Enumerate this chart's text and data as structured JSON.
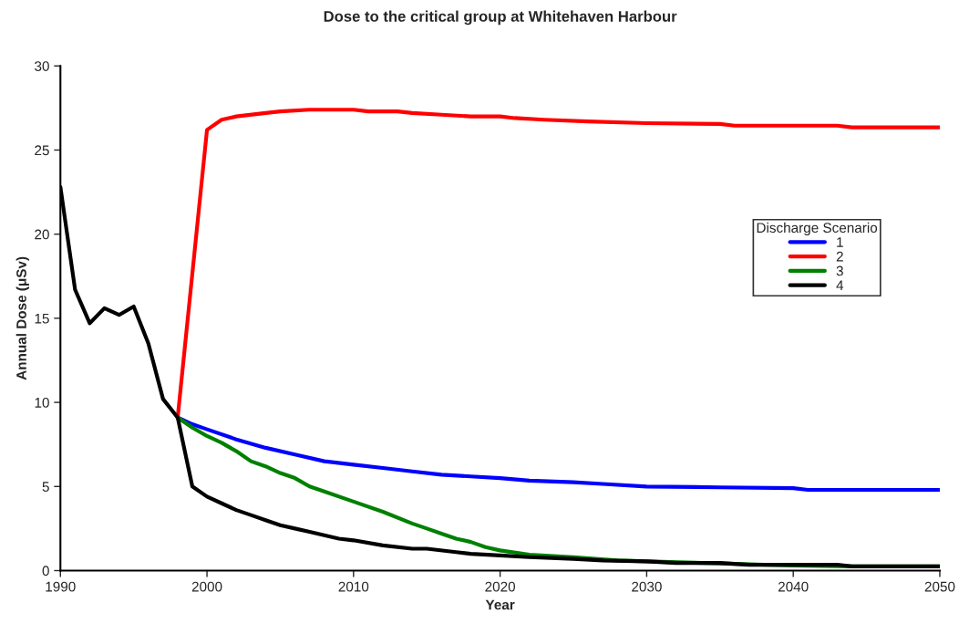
{
  "chart_data": {
    "type": "line",
    "title": "Dose to the critical group at Whitehaven Harbour",
    "xlabel": "Year",
    "ylabel": "Annual Dose (μSv)",
    "legend_title": "Discharge Scenario",
    "legend": "right",
    "grid": false,
    "marker": "none",
    "line_style": "solid",
    "xlim": [
      1990,
      2050
    ],
    "xticks": [
      1990,
      2000,
      2010,
      2020,
      2030,
      2040,
      2050
    ],
    "ylim": [
      0,
      30
    ],
    "yticks": [
      0,
      5,
      10,
      15,
      20,
      25,
      30
    ],
    "series": [
      {
        "name": "1",
        "color": "#0000ff",
        "x": [
          1998,
          1999,
          2000,
          2002,
          2004,
          2006,
          2008,
          2010,
          2012,
          2014,
          2016,
          2018,
          2020,
          2022,
          2025,
          2027,
          2030,
          2035,
          2040,
          2041,
          2050
        ],
        "values": [
          9.1,
          8.7,
          8.4,
          7.8,
          7.3,
          6.9,
          6.5,
          6.3,
          6.1,
          5.9,
          5.7,
          5.6,
          5.5,
          5.35,
          5.25,
          5.15,
          5.0,
          4.95,
          4.9,
          4.8,
          4.8
        ]
      },
      {
        "name": "2",
        "color": "#ff0000",
        "x": [
          1998,
          2000,
          2001,
          2002,
          2004,
          2005,
          2007,
          2010,
          2011,
          2013,
          2014,
          2016,
          2018,
          2020,
          2021,
          2023,
          2026,
          2030,
          2035,
          2036,
          2043,
          2044,
          2050
        ],
        "values": [
          9.1,
          26.2,
          26.8,
          27.0,
          27.2,
          27.3,
          27.4,
          27.4,
          27.3,
          27.3,
          27.2,
          27.1,
          27.0,
          27.0,
          26.9,
          26.8,
          26.7,
          26.6,
          26.55,
          26.45,
          26.45,
          26.35,
          26.35
        ]
      },
      {
        "name": "3",
        "color": "#008000",
        "x": [
          1998,
          1999,
          2000,
          2001,
          2002,
          2003,
          2004,
          2005,
          2006,
          2007,
          2008,
          2010,
          2012,
          2014,
          2015,
          2016,
          2017,
          2018,
          2019,
          2020,
          2022,
          2025,
          2028,
          2030,
          2036,
          2040,
          2044,
          2050
        ],
        "values": [
          9.1,
          8.5,
          8.0,
          7.6,
          7.1,
          6.5,
          6.2,
          5.8,
          5.5,
          5.0,
          4.7,
          4.1,
          3.5,
          2.8,
          2.5,
          2.2,
          1.9,
          1.7,
          1.4,
          1.2,
          0.95,
          0.8,
          0.6,
          0.55,
          0.4,
          0.3,
          0.25,
          0.25
        ]
      },
      {
        "name": "4",
        "color": "#000000",
        "x": [
          1990,
          1991,
          1992,
          1993,
          1994,
          1995,
          1996,
          1997,
          1998,
          1999,
          2000,
          2001,
          2002,
          2003,
          2004,
          2005,
          2006,
          2007,
          2008,
          2009,
          2010,
          2012,
          2014,
          2015,
          2017,
          2018,
          2020,
          2022,
          2025,
          2027,
          2030,
          2032,
          2035,
          2037,
          2043,
          2044,
          2050
        ],
        "values": [
          22.8,
          16.7,
          14.7,
          15.6,
          15.2,
          15.7,
          13.5,
          10.2,
          9.1,
          5.0,
          4.4,
          4.0,
          3.6,
          3.3,
          3.0,
          2.7,
          2.5,
          2.3,
          2.1,
          1.9,
          1.8,
          1.5,
          1.3,
          1.3,
          1.1,
          1.0,
          0.9,
          0.8,
          0.7,
          0.6,
          0.55,
          0.45,
          0.45,
          0.35,
          0.35,
          0.25,
          0.25
        ]
      }
    ]
  }
}
